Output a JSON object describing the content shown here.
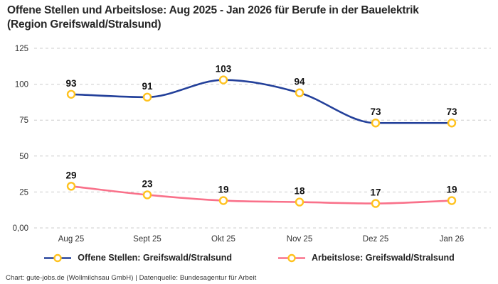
{
  "title": {
    "line1": "Offene Stellen und Arbeitslose: Aug 2025 - Jan 2026 für Berufe in der Bauelektrik",
    "line2": "(Region Greifswald/Stralsund)"
  },
  "footer": {
    "text": "Chart: gute-jobs.de (Wollmilchsau GmbH) | Datenquelle: Bundesagentur für Arbeit"
  },
  "chart_data": {
    "type": "line",
    "curve": "monotone",
    "categories": [
      "Aug 25",
      "Sept 25",
      "Okt 25",
      "Nov 25",
      "Dez 25",
      "Jan 26"
    ],
    "series": [
      {
        "name": "Offene Stellen: Greifswald/Stralsund",
        "values": [
          93,
          91,
          103,
          94,
          73,
          73
        ],
        "color": "#23409a"
      },
      {
        "name": "Arbeitslose: Greifswald/Stralsund",
        "values": [
          29,
          23,
          19,
          18,
          17,
          19
        ],
        "color": "#f9718a"
      }
    ],
    "marker_color": "#ffc21e",
    "marker_fill": "#ffffff",
    "ylim": [
      0,
      125
    ],
    "yticks": [
      {
        "value": 125,
        "label": "125"
      },
      {
        "value": 100,
        "label": "100"
      },
      {
        "value": 75,
        "label": "75"
      },
      {
        "value": 50,
        "label": "50"
      },
      {
        "value": 25,
        "label": "25"
      },
      {
        "value": 0,
        "label": "0,00"
      }
    ],
    "grid": "dashed-horizontal",
    "legend_position": "bottom"
  },
  "colors": {
    "grid": "#cccccc",
    "axis_text": "#333333",
    "label_text": "#111111",
    "title_text": "#262626"
  }
}
